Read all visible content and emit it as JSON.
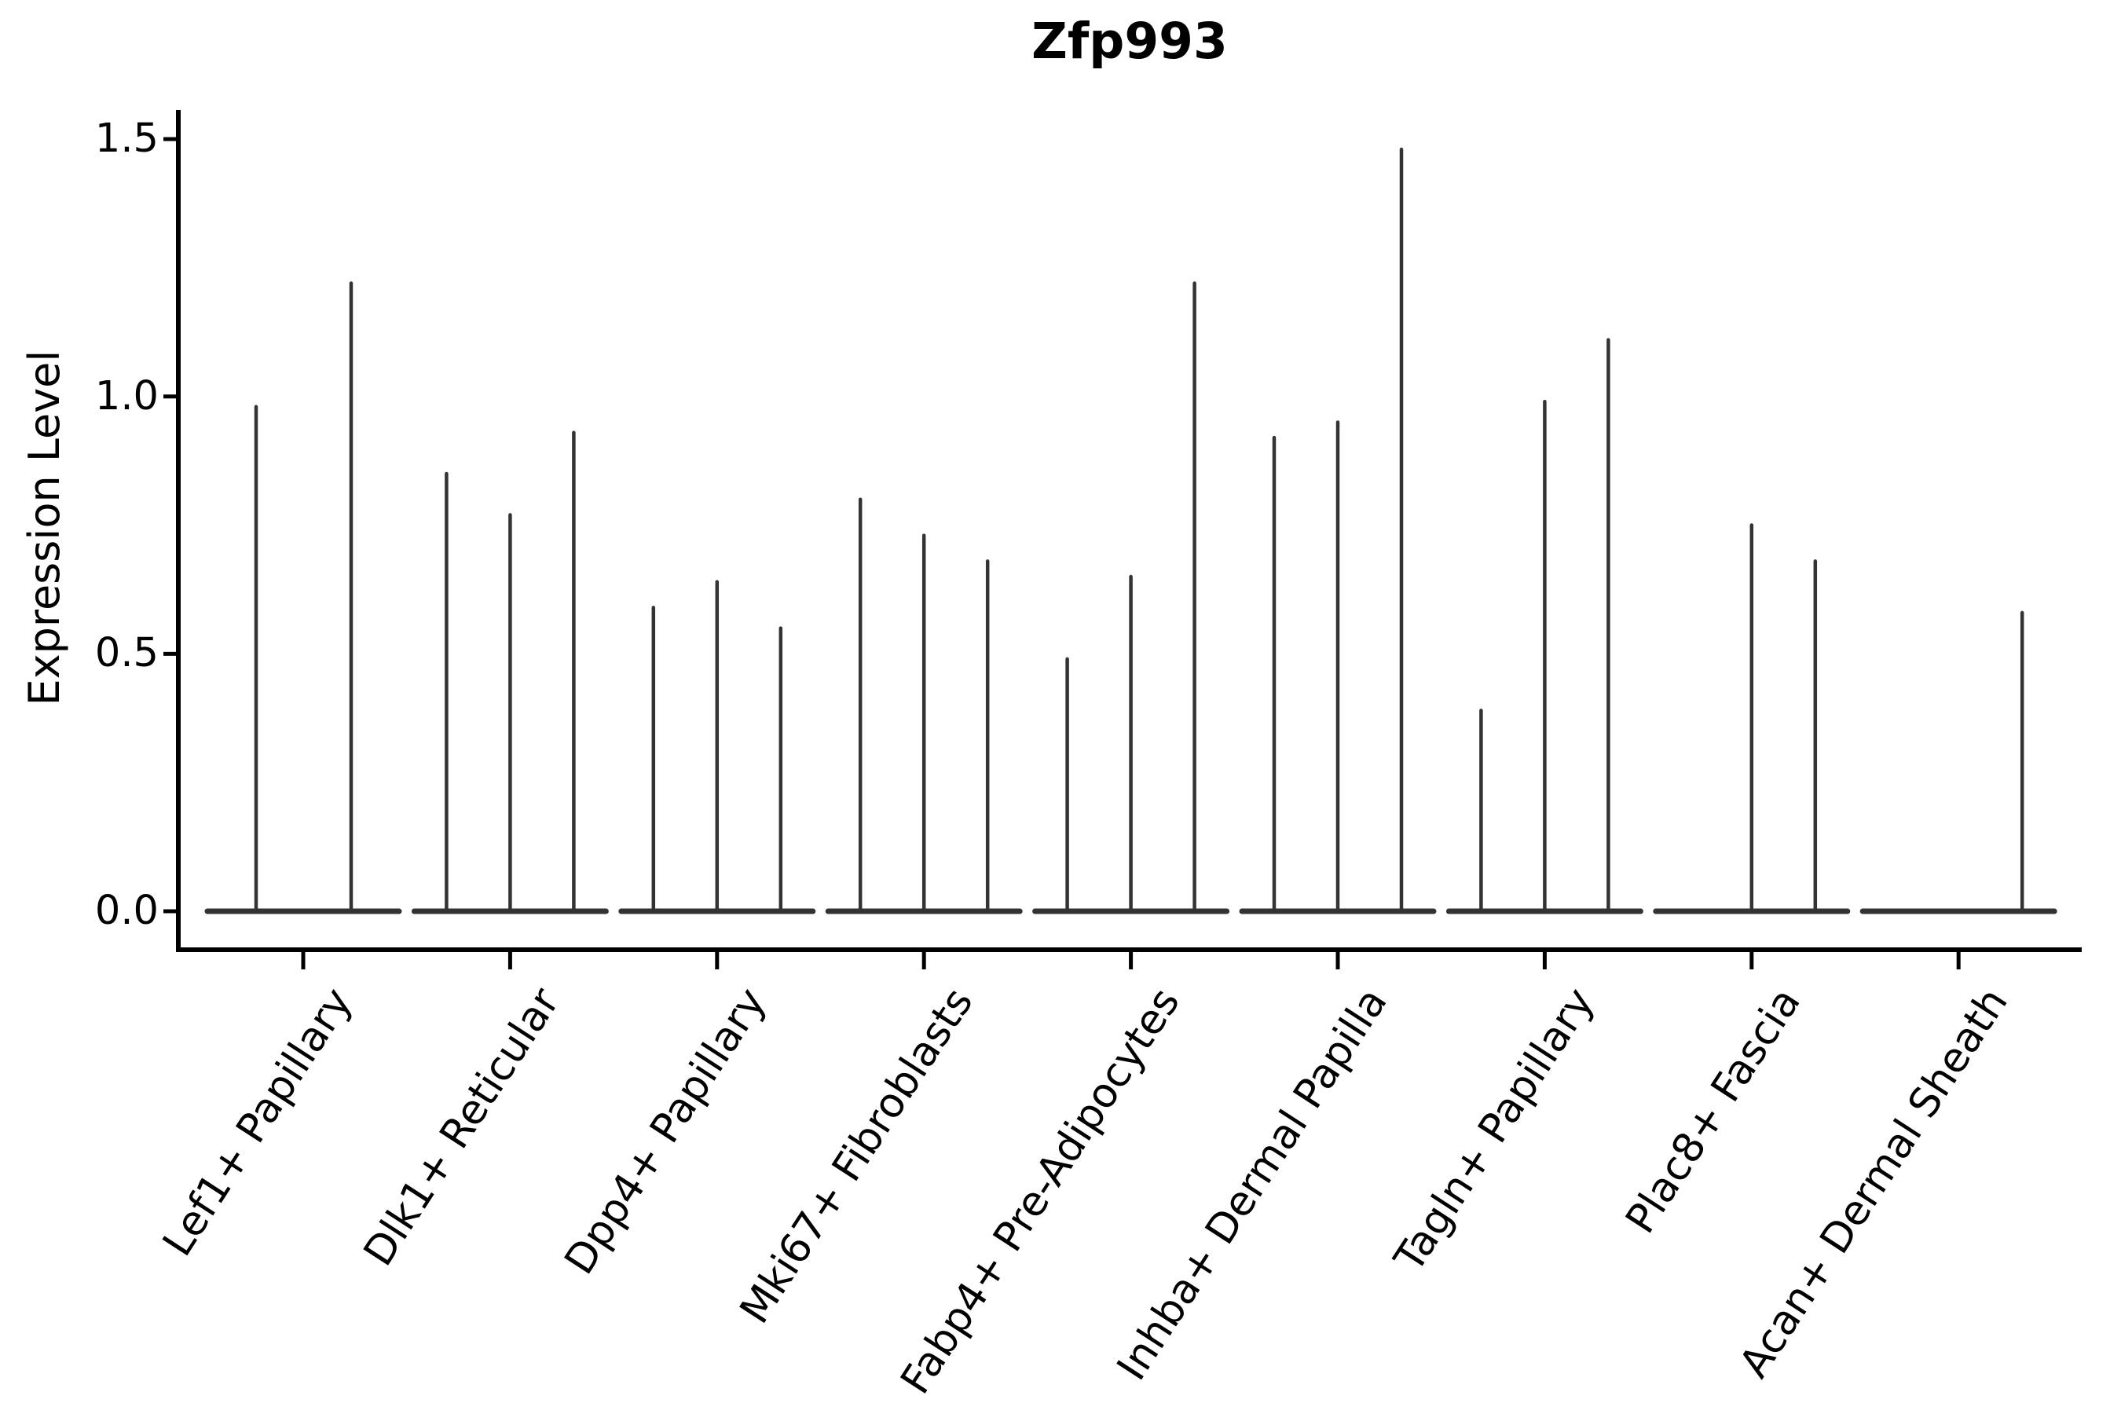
{
  "chart_data": {
    "type": "violin",
    "title": "Zfp993",
    "ylabel": "Expression Level",
    "xlabel": "",
    "yticks": [
      "0.0",
      "0.5",
      "1.0",
      "1.5"
    ],
    "ytick_values": [
      0.0,
      0.5,
      1.0,
      1.5
    ],
    "ylim": [
      0,
      1.56
    ],
    "grid": false,
    "legend": "none",
    "violin_color": "#333333",
    "axis_color": "#000000",
    "background_color": "#ffffff",
    "description": "Violin plot of Zfp993 expression; each cluster shows up to three needle-thin violins (flat base at 0 with a thin spike to the max expression value).",
    "groups": [
      {
        "label": "Lef1+ Papillary",
        "spikes": [
          {
            "offset": -60,
            "max": 0.98
          },
          {
            "offset": 61,
            "max": 1.22
          }
        ]
      },
      {
        "label": "Dlk1+ Reticular",
        "spikes": [
          {
            "offset": -81,
            "max": 0.85
          },
          {
            "offset": 0,
            "max": 0.77
          },
          {
            "offset": 81,
            "max": 0.93
          }
        ]
      },
      {
        "label": "Dpp4+ Papillary",
        "spikes": [
          {
            "offset": -81,
            "max": 0.59
          },
          {
            "offset": 0,
            "max": 0.64
          },
          {
            "offset": 81,
            "max": 0.55
          }
        ]
      },
      {
        "label": "Mki67+ Fibroblasts",
        "spikes": [
          {
            "offset": -81,
            "max": 0.8
          },
          {
            "offset": 0,
            "max": 0.73
          },
          {
            "offset": 81,
            "max": 0.68
          }
        ]
      },
      {
        "label": "Fabp4+ Pre-Adipocytes",
        "spikes": [
          {
            "offset": -81,
            "max": 0.49
          },
          {
            "offset": 0,
            "max": 0.65
          },
          {
            "offset": 81,
            "max": 1.22
          }
        ]
      },
      {
        "label": "Inhba+ Dermal Papilla",
        "spikes": [
          {
            "offset": -81,
            "max": 0.92
          },
          {
            "offset": 0,
            "max": 0.95
          },
          {
            "offset": 81,
            "max": 1.48
          }
        ]
      },
      {
        "label": "Tagln+ Papillary",
        "spikes": [
          {
            "offset": -81,
            "max": 0.39
          },
          {
            "offset": 0,
            "max": 0.99
          },
          {
            "offset": 81,
            "max": 1.11
          }
        ]
      },
      {
        "label": "Plac8+ Fascia",
        "spikes": [
          {
            "offset": 0,
            "max": 0.75
          },
          {
            "offset": 81,
            "max": 0.68
          }
        ]
      },
      {
        "label": "Acan+ Dermal Sheath",
        "spikes": [
          {
            "offset": 81,
            "max": 0.58
          }
        ]
      }
    ]
  }
}
